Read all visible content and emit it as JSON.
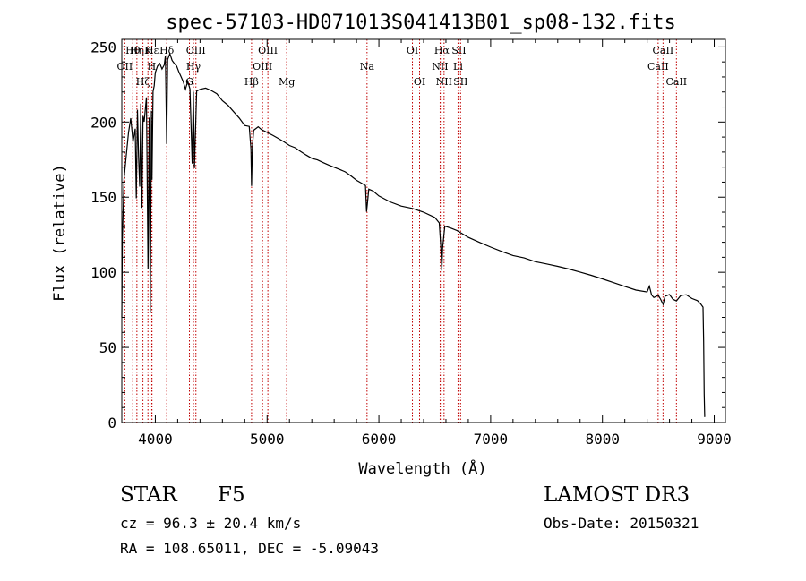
{
  "chart_data": {
    "type": "line",
    "title": "spec-57103-HD071013S041413B01_sp08-132.fits",
    "xlabel": "Wavelength (Å)",
    "ylabel": "Flux (relative)",
    "xlim": [
      3700,
      9100
    ],
    "ylim": [
      0,
      255
    ],
    "x_ticks": [
      4000,
      5000,
      6000,
      7000,
      8000,
      9000
    ],
    "y_ticks": [
      0,
      50,
      100,
      150,
      200,
      250
    ],
    "series": [
      {
        "name": "spectrum",
        "x": [
          3700,
          3705,
          3720,
          3740,
          3760,
          3780,
          3800,
          3820,
          3830,
          3840,
          3850,
          3860,
          3870,
          3880,
          3890,
          3900,
          3920,
          3935,
          3945,
          3955,
          3965,
          3970,
          3980,
          3990,
          4000,
          4020,
          4040,
          4060,
          4080,
          4090,
          4101,
          4110,
          4130,
          4150,
          4170,
          4190,
          4210,
          4230,
          4250,
          4270,
          4290,
          4310,
          4330,
          4340,
          4350,
          4370,
          4400,
          4450,
          4500,
          4550,
          4600,
          4650,
          4700,
          4750,
          4800,
          4840,
          4855,
          4861,
          4868,
          4880,
          4920,
          4950,
          5000,
          5050,
          5100,
          5150,
          5200,
          5250,
          5300,
          5350,
          5400,
          5450,
          5500,
          5550,
          5600,
          5650,
          5700,
          5750,
          5800,
          5850,
          5880,
          5890,
          5896,
          5910,
          5950,
          6000,
          6100,
          6200,
          6300,
          6400,
          6500,
          6540,
          6555,
          6563,
          6570,
          6590,
          6650,
          6700,
          6800,
          6900,
          7000,
          7100,
          7200,
          7300,
          7400,
          7500,
          7600,
          7700,
          7800,
          7900,
          8000,
          8100,
          8200,
          8300,
          8400,
          8420,
          8440,
          8460,
          8500,
          8520,
          8542,
          8560,
          8600,
          8630,
          8662,
          8700,
          8750,
          8800,
          8850,
          8880,
          8900,
          8905,
          8910,
          8915
        ],
        "values": [
          70,
          120,
          160,
          175,
          190,
          200,
          185,
          195,
          150,
          210,
          180,
          160,
          215,
          145,
          205,
          200,
          215,
          100,
          200,
          70,
          205,
          160,
          220,
          225,
          235,
          240,
          242,
          238,
          240,
          245,
          185,
          240,
          243,
          238,
          236,
          235,
          232,
          230,
          228,
          224,
          230,
          225,
          175,
          222,
          170,
          220,
          220,
          220,
          218,
          216,
          212,
          210,
          207,
          204,
          200,
          200,
          185,
          160,
          185,
          195,
          196,
          193,
          192,
          190,
          188,
          186,
          184,
          183,
          181,
          179,
          177,
          176,
          174,
          172,
          170,
          168,
          166,
          163,
          160,
          158,
          157,
          140,
          145,
          156,
          155,
          152,
          148,
          145,
          143,
          140,
          136,
          132,
          115,
          100,
          115,
          130,
          129,
          128,
          124,
          121,
          118,
          115,
          112,
          110,
          107,
          105,
          103,
          101,
          99,
          97,
          95,
          93,
          91,
          89,
          88,
          92,
          86,
          84,
          85,
          82,
          78,
          83,
          84,
          81,
          80,
          84,
          85,
          83,
          82,
          80,
          78,
          55,
          20,
          4
        ]
      }
    ],
    "line_markers": [
      {
        "label": "OII",
        "x": 3727,
        "row": 2
      },
      {
        "label": "Hθ",
        "x": 3798,
        "row": 1
      },
      {
        "label": "Hη",
        "x": 3835,
        "row": 1
      },
      {
        "label": "Hζ",
        "x": 3889,
        "row": 3
      },
      {
        "label": "K",
        "x": 3934,
        "row": 1
      },
      {
        "label": "H",
        "x": 3968,
        "row": 2
      },
      {
        "label": "Hε",
        "x": 3970,
        "row": 1
      },
      {
        "label": "Hδ",
        "x": 4102,
        "row": 1
      },
      {
        "label": "G",
        "x": 4305,
        "row": 3
      },
      {
        "label": "Hγ",
        "x": 4341,
        "row": 2
      },
      {
        "label": "OIII",
        "x": 4363,
        "row": 1
      },
      {
        "label": "Hβ",
        "x": 4861,
        "row": 3
      },
      {
        "label": "OIII",
        "x": 4959,
        "row": 2
      },
      {
        "label": "OIII",
        "x": 5007,
        "row": 1
      },
      {
        "label": "Mg",
        "x": 5175,
        "row": 3
      },
      {
        "label": "Na",
        "x": 5894,
        "row": 2
      },
      {
        "label": "OI",
        "x": 6300,
        "row": 1
      },
      {
        "label": "OI",
        "x": 6364,
        "row": 3
      },
      {
        "label": "NII",
        "x": 6548,
        "row": 2
      },
      {
        "label": "Hα",
        "x": 6563,
        "row": 1
      },
      {
        "label": "NII",
        "x": 6583,
        "row": 3
      },
      {
        "label": "Li",
        "x": 6708,
        "row": 2
      },
      {
        "label": "SII",
        "x": 6716,
        "row": 1
      },
      {
        "label": "SII",
        "x": 6731,
        "row": 3
      },
      {
        "label": "CaII",
        "x": 8498,
        "row": 2
      },
      {
        "label": "CaII",
        "x": 8542,
        "row": 1
      },
      {
        "label": "CaII",
        "x": 8662,
        "row": 3
      }
    ]
  },
  "info": {
    "object_class": "STAR",
    "subclass": "F5",
    "survey": "LAMOST DR3",
    "redshift": "cz = 96.3 ± 20.4 km/s",
    "obs_date": "Obs-Date: 20150321",
    "coords": "RA = 108.65011, DEC =  -5.09043"
  },
  "colors": {
    "line_marker": "#c00000",
    "spectrum": "#000000",
    "axes": "#000000"
  }
}
